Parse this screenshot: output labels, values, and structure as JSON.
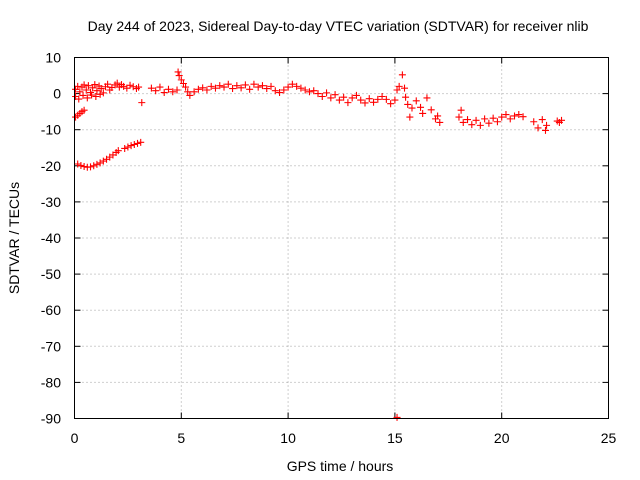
{
  "chart_data": {
    "type": "scatter",
    "title": "Day 244 of 2023, Sidereal Day-to-day VTEC variation (SDTVAR) for receiver nlib",
    "xlabel": "GPS time / hours",
    "ylabel": "SDTVAR / TECUs",
    "xlim": [
      0,
      25
    ],
    "ylim": [
      -90,
      10
    ],
    "x_ticks": [
      0,
      5,
      10,
      15,
      20,
      25
    ],
    "y_ticks": [
      10,
      0,
      -10,
      -20,
      -30,
      -40,
      -50,
      -60,
      -70,
      -80,
      -90
    ],
    "grid": true,
    "marker": "+",
    "color": "#ff0000",
    "series": [
      {
        "name": "SDTVAR",
        "points": [
          [
            0.05,
            1.2
          ],
          [
            0.15,
            2.0
          ],
          [
            0.25,
            0.5
          ],
          [
            0.35,
            1.8
          ],
          [
            0.45,
            2.4
          ],
          [
            0.55,
            1.0
          ],
          [
            0.65,
            2.2
          ],
          [
            0.75,
            0.3
          ],
          [
            0.85,
            1.6
          ],
          [
            0.95,
            2.5
          ],
          [
            1.05,
            0.8
          ],
          [
            1.15,
            2.1
          ],
          [
            1.25,
            1.4
          ],
          [
            1.35,
            0.2
          ],
          [
            1.45,
            1.9
          ],
          [
            1.55,
            2.6
          ],
          [
            1.65,
            1.0
          ],
          [
            1.75,
            1.7
          ],
          [
            1.9,
            2.4
          ],
          [
            2.0,
            2.9
          ],
          [
            2.1,
            1.8
          ],
          [
            2.2,
            2.5
          ],
          [
            2.3,
            2.0
          ],
          [
            2.45,
            1.5
          ],
          [
            2.6,
            2.3
          ],
          [
            2.75,
            1.9
          ],
          [
            2.9,
            1.4
          ],
          [
            3.0,
            1.8
          ],
          [
            3.15,
            -2.5
          ],
          [
            0.05,
            -0.8
          ],
          [
            0.2,
            -1.5
          ],
          [
            0.4,
            -0.5
          ],
          [
            0.6,
            -1.2
          ],
          [
            0.8,
            -0.4
          ],
          [
            1.0,
            -0.8
          ],
          [
            1.2,
            -0.2
          ],
          [
            0.05,
            -6.5
          ],
          [
            0.15,
            -6.0
          ],
          [
            0.25,
            -5.5
          ],
          [
            0.35,
            -5.0
          ],
          [
            0.45,
            -4.6
          ],
          [
            0.15,
            -19.5
          ],
          [
            0.3,
            -19.9
          ],
          [
            0.45,
            -20.2
          ],
          [
            0.6,
            -20.4
          ],
          [
            0.75,
            -20.3
          ],
          [
            0.9,
            -20.0
          ],
          [
            1.05,
            -19.6
          ],
          [
            1.2,
            -19.2
          ],
          [
            1.35,
            -18.7
          ],
          [
            1.5,
            -18.2
          ],
          [
            1.65,
            -17.6
          ],
          [
            1.8,
            -17.0
          ],
          [
            1.95,
            -16.3
          ],
          [
            2.05,
            -15.8
          ],
          [
            2.35,
            -15.2
          ],
          [
            2.5,
            -14.8
          ],
          [
            2.65,
            -14.4
          ],
          [
            2.8,
            -14.1
          ],
          [
            2.95,
            -13.8
          ],
          [
            3.1,
            -13.5
          ],
          [
            3.6,
            1.5
          ],
          [
            3.8,
            0.8
          ],
          [
            4.0,
            1.8
          ],
          [
            4.2,
            0.3
          ],
          [
            4.4,
            1.2
          ],
          [
            4.6,
            0.5
          ],
          [
            4.8,
            1.0
          ],
          [
            4.85,
            6.0
          ],
          [
            4.9,
            5.0
          ],
          [
            5.0,
            3.8
          ],
          [
            5.1,
            2.8
          ],
          [
            5.2,
            1.8
          ],
          [
            5.3,
            0.5
          ],
          [
            5.4,
            -0.5
          ],
          [
            5.6,
            0.5
          ],
          [
            5.8,
            1.2
          ],
          [
            6.0,
            1.6
          ],
          [
            6.2,
            1.0
          ],
          [
            6.4,
            2.0
          ],
          [
            6.6,
            1.5
          ],
          [
            6.8,
            2.2
          ],
          [
            7.0,
            1.8
          ],
          [
            7.2,
            2.6
          ],
          [
            7.4,
            1.4
          ],
          [
            7.6,
            2.2
          ],
          [
            7.8,
            1.6
          ],
          [
            8.0,
            2.4
          ],
          [
            8.2,
            1.2
          ],
          [
            8.4,
            2.6
          ],
          [
            8.6,
            1.8
          ],
          [
            8.8,
            2.2
          ],
          [
            9.0,
            1.4
          ],
          [
            9.2,
            2.0
          ],
          [
            9.4,
            0.8
          ],
          [
            9.6,
            0.3
          ],
          [
            9.8,
            1.0
          ],
          [
            10.0,
            1.8
          ],
          [
            10.2,
            2.6
          ],
          [
            10.4,
            2.0
          ],
          [
            10.6,
            1.5
          ],
          [
            10.8,
            1.0
          ],
          [
            11.0,
            0.5
          ],
          [
            11.2,
            0.8
          ],
          [
            11.4,
            0.0
          ],
          [
            11.6,
            -0.8
          ],
          [
            11.8,
            0.2
          ],
          [
            12.0,
            -1.2
          ],
          [
            12.2,
            -0.3
          ],
          [
            12.4,
            -1.8
          ],
          [
            12.6,
            -1.0
          ],
          [
            12.8,
            -2.5
          ],
          [
            13.0,
            -1.2
          ],
          [
            13.2,
            -0.5
          ],
          [
            13.4,
            -1.8
          ],
          [
            13.6,
            -2.6
          ],
          [
            13.8,
            -1.4
          ],
          [
            14.0,
            -2.4
          ],
          [
            14.2,
            -1.6
          ],
          [
            14.4,
            -0.8
          ],
          [
            14.6,
            -1.6
          ],
          [
            14.8,
            -2.8
          ],
          [
            15.0,
            -1.8
          ],
          [
            15.1,
            1.0
          ],
          [
            15.2,
            2.0
          ],
          [
            15.35,
            5.2
          ],
          [
            15.45,
            1.5
          ],
          [
            15.5,
            -1.0
          ],
          [
            15.6,
            -3.0
          ],
          [
            15.7,
            -6.5
          ],
          [
            15.8,
            -4.0
          ],
          [
            16.0,
            -2.0
          ],
          [
            16.2,
            -3.8
          ],
          [
            16.3,
            -5.5
          ],
          [
            16.5,
            -1.2
          ],
          [
            16.7,
            -4.5
          ],
          [
            16.9,
            -7.0
          ],
          [
            17.0,
            -6.2
          ],
          [
            17.1,
            -8.0
          ],
          [
            18.0,
            -6.5
          ],
          [
            18.1,
            -4.6
          ],
          [
            18.2,
            -8.0
          ],
          [
            18.4,
            -7.2
          ],
          [
            18.6,
            -8.6
          ],
          [
            18.8,
            -7.4
          ],
          [
            19.0,
            -8.8
          ],
          [
            19.2,
            -7.0
          ],
          [
            19.4,
            -8.2
          ],
          [
            19.6,
            -6.8
          ],
          [
            19.8,
            -7.8
          ],
          [
            20.0,
            -6.5
          ],
          [
            20.2,
            -5.8
          ],
          [
            20.4,
            -7.0
          ],
          [
            20.6,
            -6.2
          ],
          [
            20.8,
            -5.8
          ],
          [
            21.0,
            -6.4
          ],
          [
            21.5,
            -7.8
          ],
          [
            21.7,
            -9.5
          ],
          [
            21.9,
            -7.2
          ],
          [
            22.05,
            -10.2
          ],
          [
            22.1,
            -8.8
          ],
          [
            22.6,
            -7.6
          ],
          [
            22.7,
            -8.0
          ],
          [
            22.8,
            -7.4
          ],
          [
            15.1,
            -89.7
          ]
        ]
      }
    ]
  }
}
